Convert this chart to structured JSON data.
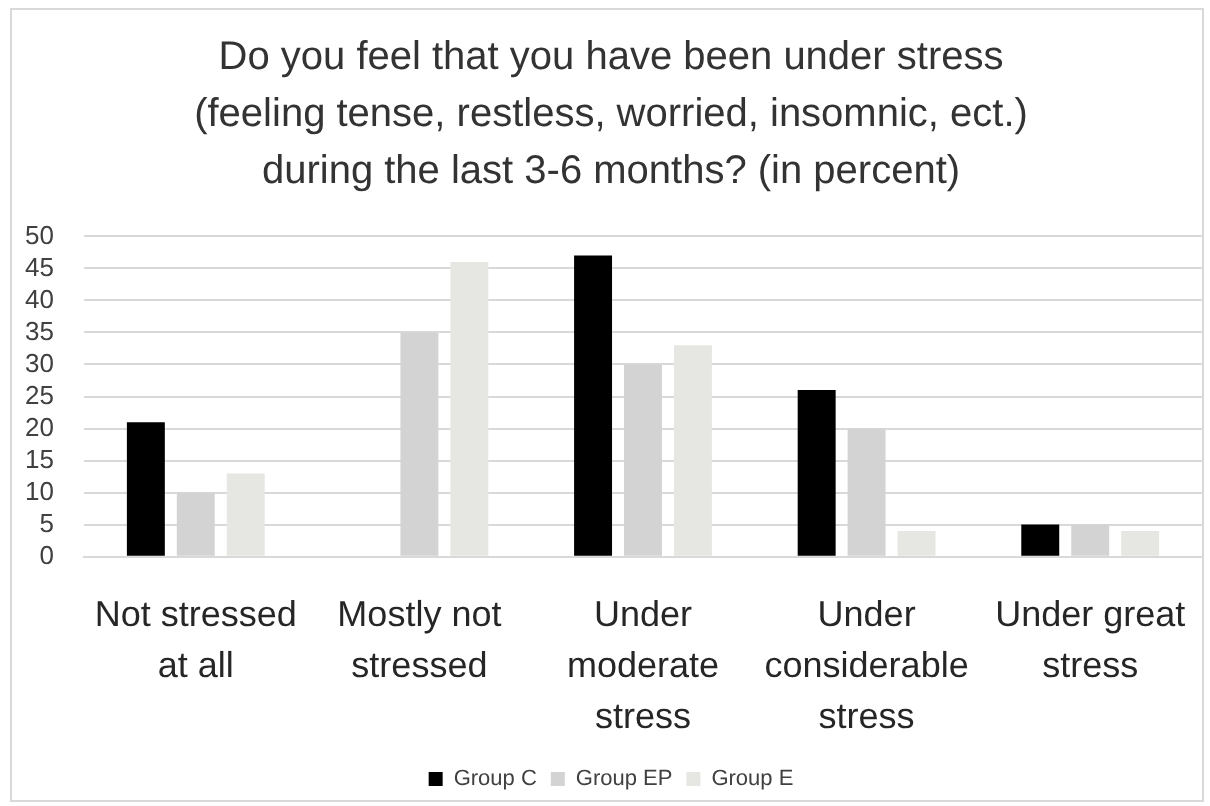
{
  "chart_data": {
    "type": "bar",
    "title": "Do you feel that you have been under stress (feeling tense, restless, worried, insomnic, ect.) during the last 3-6 months? (in percent)",
    "categories": [
      "Not stressed at all",
      "Mostly not stressed",
      "Under moderate stress",
      "Under considerable stress",
      "Under great stress"
    ],
    "series": [
      {
        "name": "Group C",
        "color": "#000000",
        "values": [
          21,
          0,
          47,
          26,
          5
        ]
      },
      {
        "name": "Group EP",
        "color": "#d3d3d3",
        "values": [
          10,
          35,
          30,
          20,
          5
        ]
      },
      {
        "name": "Group E",
        "color": "#e6e6e2",
        "values": [
          13,
          46,
          33,
          4,
          4
        ]
      }
    ],
    "ylim": [
      0,
      50
    ],
    "yticks": [
      0,
      5,
      10,
      15,
      20,
      25,
      30,
      35,
      40,
      45,
      50
    ],
    "grid": "y",
    "legend": "bottom"
  }
}
